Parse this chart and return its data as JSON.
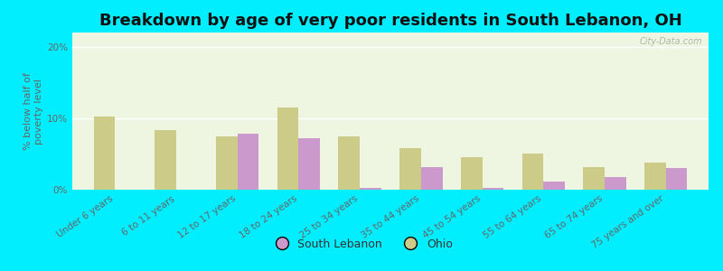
{
  "title": "Breakdown by age of very poor residents in South Lebanon, OH",
  "ylabel": "% below half of\npoverty level",
  "categories": [
    "Under 6 years",
    "6 to 11 years",
    "12 to 17 years",
    "18 to 24 years",
    "25 to 34 years",
    "35 to 44 years",
    "45 to 54 years",
    "55 to 64 years",
    "65 to 74 years",
    "75 years and over"
  ],
  "south_lebanon": [
    0.0,
    0.0,
    7.8,
    7.2,
    0.2,
    3.2,
    0.3,
    1.2,
    1.8,
    3.0
  ],
  "ohio": [
    10.2,
    8.3,
    7.5,
    11.5,
    7.5,
    5.8,
    4.5,
    5.0,
    3.2,
    3.8
  ],
  "sl_color": "#cc99cc",
  "ohio_color": "#cccc88",
  "background_outer": "#00eeff",
  "background_plot": "#eef5e0",
  "bar_width": 0.35,
  "ylim": [
    0,
    22
  ],
  "yticks": [
    0,
    10,
    20
  ],
  "ytick_labels": [
    "0%",
    "10%",
    "20%"
  ],
  "title_fontsize": 13,
  "axis_label_fontsize": 8,
  "tick_fontsize": 7.5,
  "legend_fontsize": 9,
  "watermark": "City-Data.com"
}
